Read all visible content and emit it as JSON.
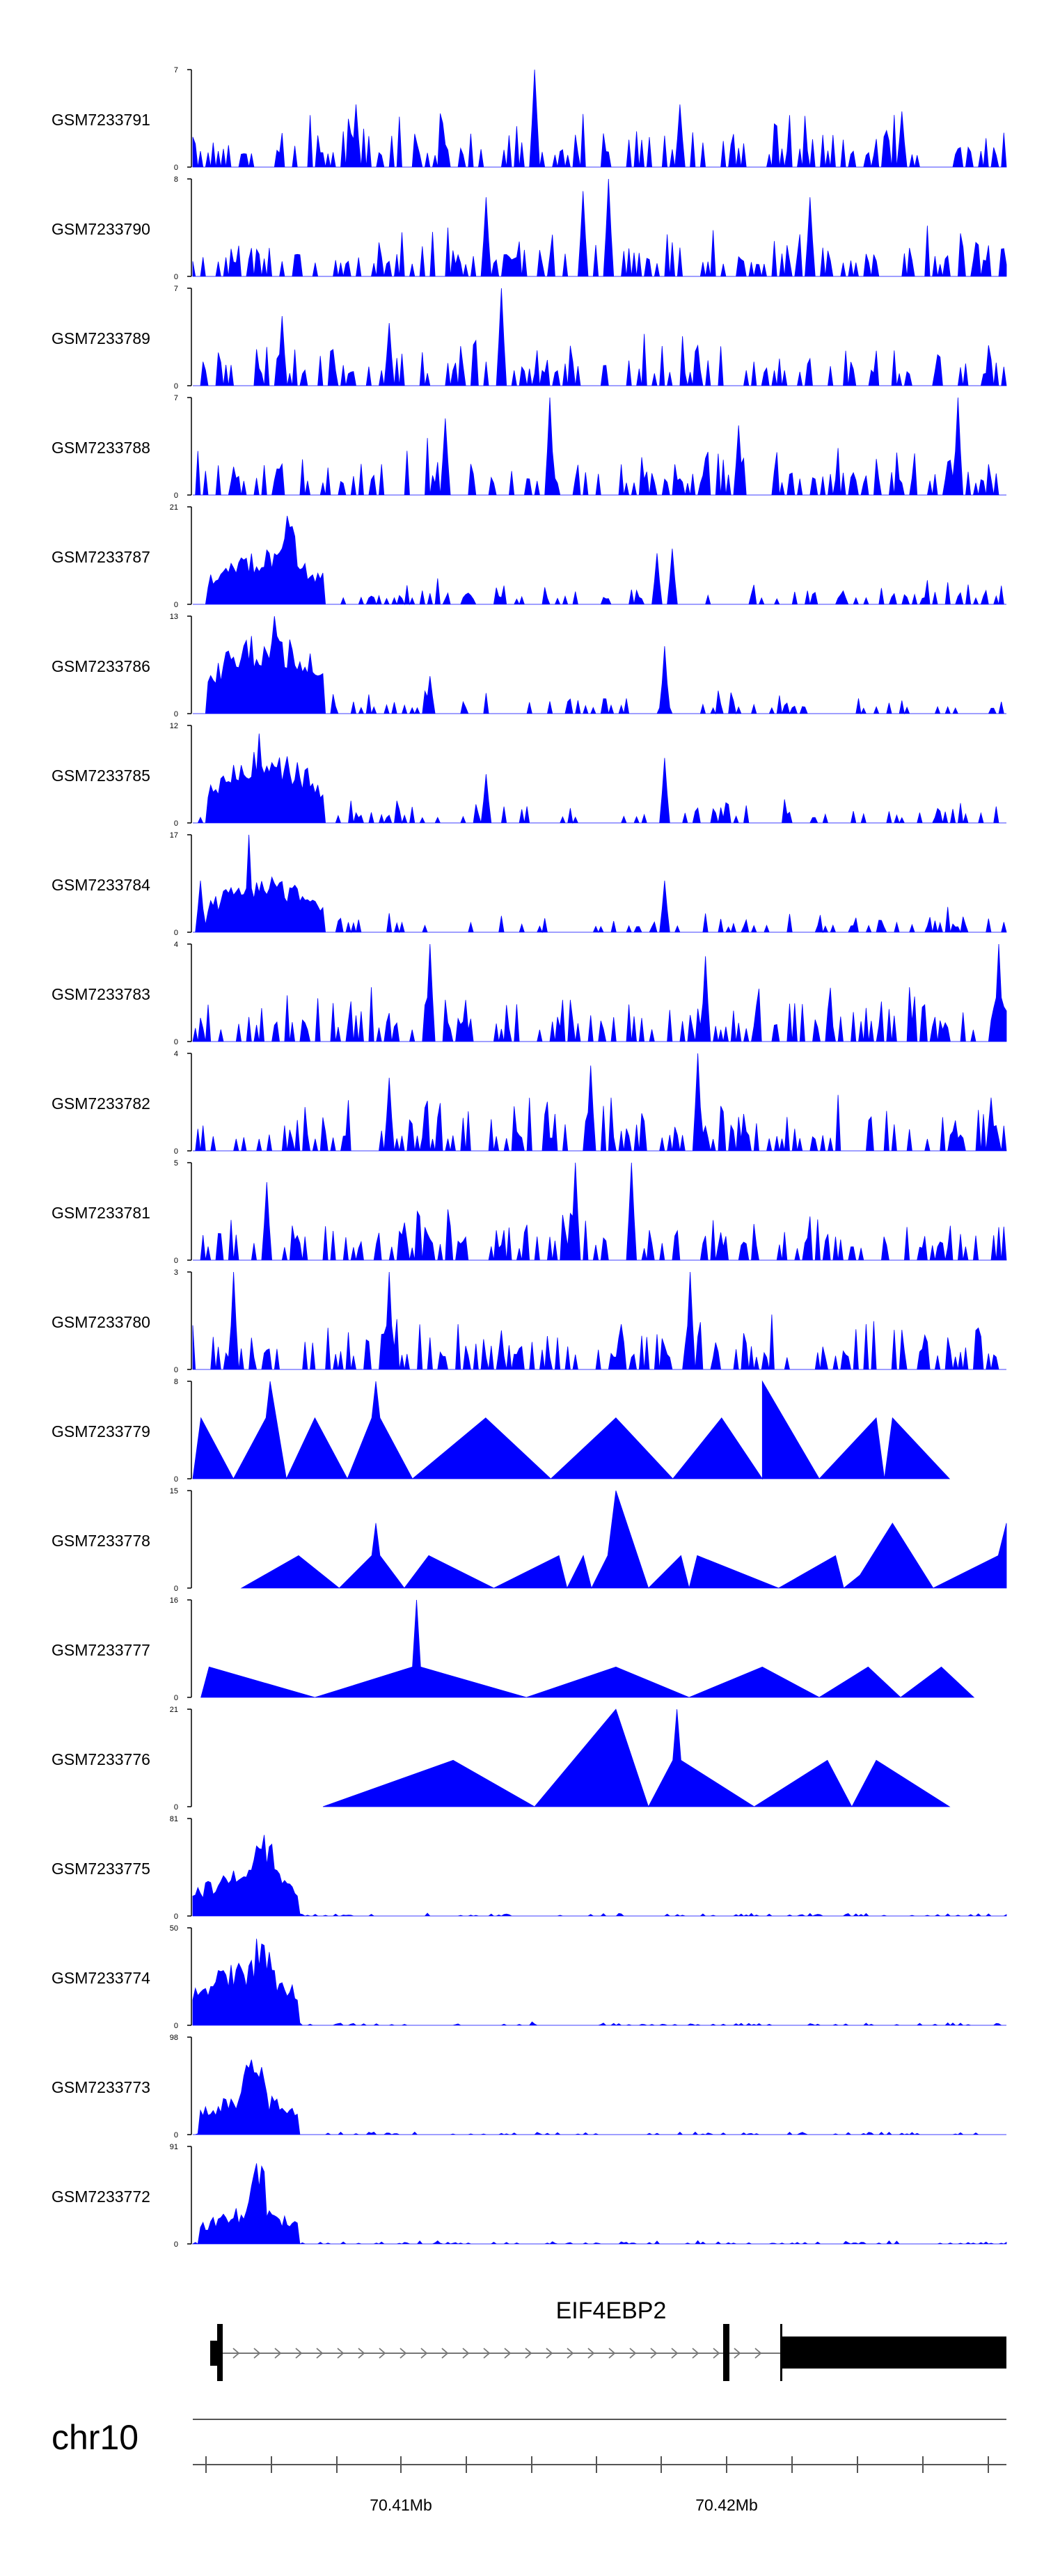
{
  "colors": {
    "signal": "#0000ff",
    "axis": "#000000",
    "gene": "#000000",
    "intron": "#777777",
    "scale": "#555555"
  },
  "chart_data": {
    "type": "area",
    "x_unit": "Mb",
    "region": "chr10",
    "tracks": [
      {
        "name": "GSM7233791",
        "ymax": 7,
        "ymin": 0,
        "profile": "sparse",
        "peaks": [
          [
            0.42,
            7
          ],
          [
            0.2,
            4.5
          ],
          [
            0.6,
            4.5
          ],
          [
            0.87,
            4
          ]
        ]
      },
      {
        "name": "GSM7233790",
        "ymax": 8,
        "ymin": 0,
        "profile": "sparse",
        "peaks": [
          [
            0.51,
            8
          ],
          [
            0.48,
            7
          ],
          [
            0.36,
            6.5
          ],
          [
            0.76,
            6.5
          ]
        ]
      },
      {
        "name": "GSM7233789",
        "ymax": 7,
        "ymin": 0,
        "profile": "sparse",
        "peaks": [
          [
            0.38,
            7
          ],
          [
            0.24,
            4.5
          ],
          [
            0.11,
            5
          ]
        ]
      },
      {
        "name": "GSM7233788",
        "ymax": 7,
        "ymin": 0,
        "profile": "sparse",
        "peaks": [
          [
            0.44,
            7
          ],
          [
            0.94,
            7
          ],
          [
            0.31,
            5.5
          ],
          [
            0.67,
            5
          ]
        ]
      },
      {
        "name": "GSM7233787",
        "ymax": 21,
        "ymin": 0,
        "profile": "promoter",
        "promoter": [
          [
            0.02,
            0.14,
            12
          ],
          [
            0.1,
            0.03,
            20
          ]
        ],
        "peaks": [
          [
            0.57,
            11
          ],
          [
            0.59,
            12
          ]
        ]
      },
      {
        "name": "GSM7233786",
        "ymax": 13,
        "ymin": 0,
        "profile": "promoter",
        "promoter": [
          [
            0.02,
            0.14,
            11
          ]
        ],
        "peaks": [
          [
            0.58,
            9
          ],
          [
            0.29,
            5
          ],
          [
            0.1,
            13
          ]
        ]
      },
      {
        "name": "GSM7233785",
        "ymax": 12,
        "ymin": 0,
        "profile": "promoter",
        "promoter": [
          [
            0.02,
            0.14,
            9
          ]
        ],
        "peaks": [
          [
            0.58,
            8
          ],
          [
            0.08,
            11
          ],
          [
            0.36,
            6
          ]
        ]
      },
      {
        "name": "GSM7233784",
        "ymax": 17,
        "ymin": 0,
        "profile": "promoter",
        "promoter": [
          [
            0.02,
            0.14,
            10
          ]
        ],
        "peaks": [
          [
            0.07,
            17
          ],
          [
            0.58,
            9
          ],
          [
            0.01,
            9
          ]
        ]
      },
      {
        "name": "GSM7233783",
        "ymax": 4,
        "ymin": 0,
        "profile": "sparse",
        "peaks": [
          [
            0.29,
            4
          ],
          [
            0.63,
            3.5
          ],
          [
            0.99,
            4
          ]
        ]
      },
      {
        "name": "GSM7233782",
        "ymax": 4,
        "ymin": 0,
        "profile": "sparse",
        "peaks": [
          [
            0.62,
            4
          ],
          [
            0.24,
            3
          ],
          [
            0.49,
            3.5
          ]
        ]
      },
      {
        "name": "GSM7233781",
        "ymax": 5,
        "ymin": 0,
        "profile": "sparse",
        "peaks": [
          [
            0.47,
            5
          ],
          [
            0.54,
            5
          ],
          [
            0.09,
            4
          ]
        ]
      },
      {
        "name": "GSM7233780",
        "ymax": 3,
        "ymin": 0,
        "profile": "sparse",
        "peaks": [
          [
            0.05,
            3
          ],
          [
            0.24,
            3
          ],
          [
            0.61,
            3
          ]
        ]
      },
      {
        "name": "GSM7233779",
        "ymax": 8,
        "ymin": 0,
        "profile": "triangles",
        "points": [
          [
            0.0,
            0
          ],
          [
            0.01,
            5
          ],
          [
            0.05,
            0
          ],
          [
            0.09,
            5
          ],
          [
            0.095,
            8
          ],
          [
            0.115,
            0
          ],
          [
            0.15,
            5
          ],
          [
            0.19,
            0
          ],
          [
            0.22,
            5
          ],
          [
            0.225,
            8
          ],
          [
            0.23,
            5
          ],
          [
            0.27,
            0
          ],
          [
            0.36,
            5
          ],
          [
            0.44,
            0
          ],
          [
            0.52,
            5
          ],
          [
            0.59,
            0
          ],
          [
            0.65,
            5
          ],
          [
            0.7,
            0
          ],
          [
            0.7,
            3
          ],
          [
            0.7,
            8
          ],
          [
            0.77,
            0
          ],
          [
            0.84,
            5
          ],
          [
            0.85,
            0
          ],
          [
            0.86,
            5
          ],
          [
            0.93,
            0
          ]
        ]
      },
      {
        "name": "GSM7233778",
        "ymax": 15,
        "ymin": 0,
        "profile": "triangles",
        "points": [
          [
            0.06,
            0
          ],
          [
            0.13,
            5
          ],
          [
            0.18,
            0
          ],
          [
            0.22,
            5
          ],
          [
            0.225,
            10
          ],
          [
            0.23,
            5
          ],
          [
            0.26,
            0
          ],
          [
            0.29,
            5
          ],
          [
            0.37,
            0
          ],
          [
            0.45,
            5
          ],
          [
            0.46,
            0
          ],
          [
            0.48,
            5
          ],
          [
            0.49,
            0
          ],
          [
            0.51,
            5
          ],
          [
            0.52,
            15
          ],
          [
            0.56,
            0
          ],
          [
            0.6,
            5
          ],
          [
            0.61,
            0
          ],
          [
            0.62,
            5
          ],
          [
            0.72,
            0
          ],
          [
            0.79,
            5
          ],
          [
            0.8,
            0
          ],
          [
            0.82,
            2
          ],
          [
            0.86,
            10
          ],
          [
            0.91,
            0
          ],
          [
            0.99,
            5
          ],
          [
            1.0,
            10
          ],
          [
            1.0,
            0
          ]
        ]
      },
      {
        "name": "GSM7233777",
        "ymax": 16,
        "ymin": 0,
        "profile": "triangles",
        "points": [
          [
            0.01,
            0
          ],
          [
            0.02,
            5
          ],
          [
            0.15,
            0
          ],
          [
            0.27,
            5
          ],
          [
            0.275,
            16
          ],
          [
            0.28,
            5
          ],
          [
            0.41,
            0
          ],
          [
            0.52,
            5
          ],
          [
            0.61,
            0
          ],
          [
            0.7,
            5
          ],
          [
            0.77,
            0
          ],
          [
            0.83,
            5
          ],
          [
            0.87,
            0
          ],
          [
            0.92,
            5
          ],
          [
            0.96,
            0
          ]
        ]
      },
      {
        "name": "GSM7233776",
        "ymax": 21,
        "ymin": 0,
        "profile": "triangles",
        "points": [
          [
            0.16,
            0
          ],
          [
            0.32,
            10
          ],
          [
            0.42,
            0
          ],
          [
            0.52,
            21
          ],
          [
            0.56,
            0
          ],
          [
            0.59,
            10
          ],
          [
            0.595,
            21
          ],
          [
            0.6,
            10
          ],
          [
            0.69,
            0
          ],
          [
            0.78,
            10
          ],
          [
            0.81,
            0
          ],
          [
            0.84,
            10
          ],
          [
            0.93,
            0
          ]
        ]
      },
      {
        "name": "GSM7233775",
        "ymax": 81,
        "ymin": 0,
        "profile": "promoter",
        "promoter": [
          [
            0.0,
            0.13,
            40
          ],
          [
            0.07,
            0.04,
            72
          ]
        ],
        "peaks": []
      },
      {
        "name": "GSM7233774",
        "ymax": 50,
        "ymin": 0,
        "profile": "promoter",
        "promoter": [
          [
            0.0,
            0.13,
            35
          ],
          [
            0.07,
            0.03,
            50
          ]
        ],
        "peaks": []
      },
      {
        "name": "GSM7233773",
        "ymax": 98,
        "ymin": 0,
        "profile": "promoter",
        "promoter": [
          [
            0.01,
            0.12,
            45
          ],
          [
            0.06,
            0.03,
            98
          ]
        ],
        "peaks": []
      },
      {
        "name": "GSM7233772",
        "ymax": 91,
        "ymin": 0,
        "profile": "promoter",
        "promoter": [
          [
            0.01,
            0.12,
            35
          ],
          [
            0.07,
            0.02,
            91
          ]
        ],
        "peaks": []
      }
    ],
    "gene": {
      "name": "EIF4EBP2",
      "strand": "+"
    },
    "axis": {
      "chromosome": "chr10",
      "tick_labels": [
        "70.41Mb",
        "70.42Mb"
      ]
    }
  }
}
